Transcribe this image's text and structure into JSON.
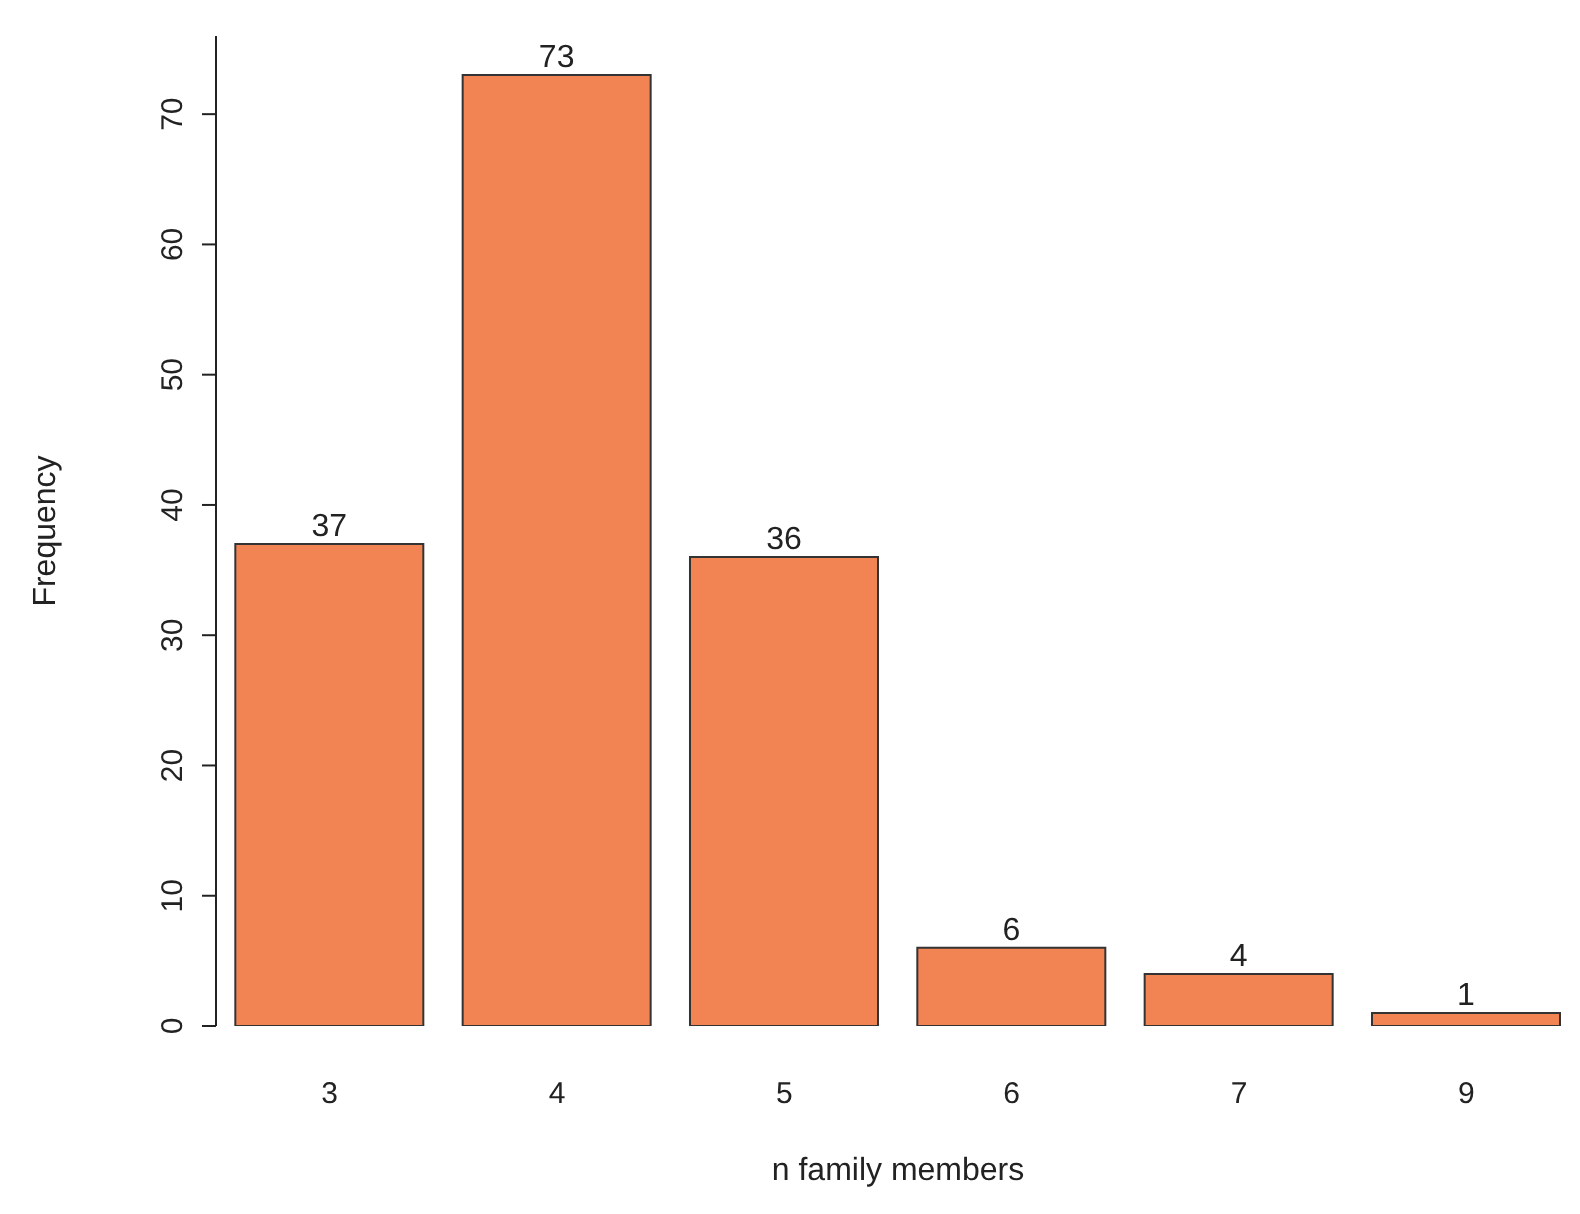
{
  "chart_data": {
    "type": "bar",
    "xlabel": "n family members",
    "ylabel": "Frequency",
    "categories": [
      "3",
      "4",
      "5",
      "6",
      "7",
      "9"
    ],
    "values": [
      37,
      73,
      36,
      6,
      4,
      1
    ],
    "color": "#f28453",
    "ylim": [
      0,
      76
    ],
    "yticks": [
      0,
      10,
      20,
      30,
      40,
      50,
      60,
      70
    ],
    "grid": false,
    "legend": false,
    "data_labels": true
  }
}
